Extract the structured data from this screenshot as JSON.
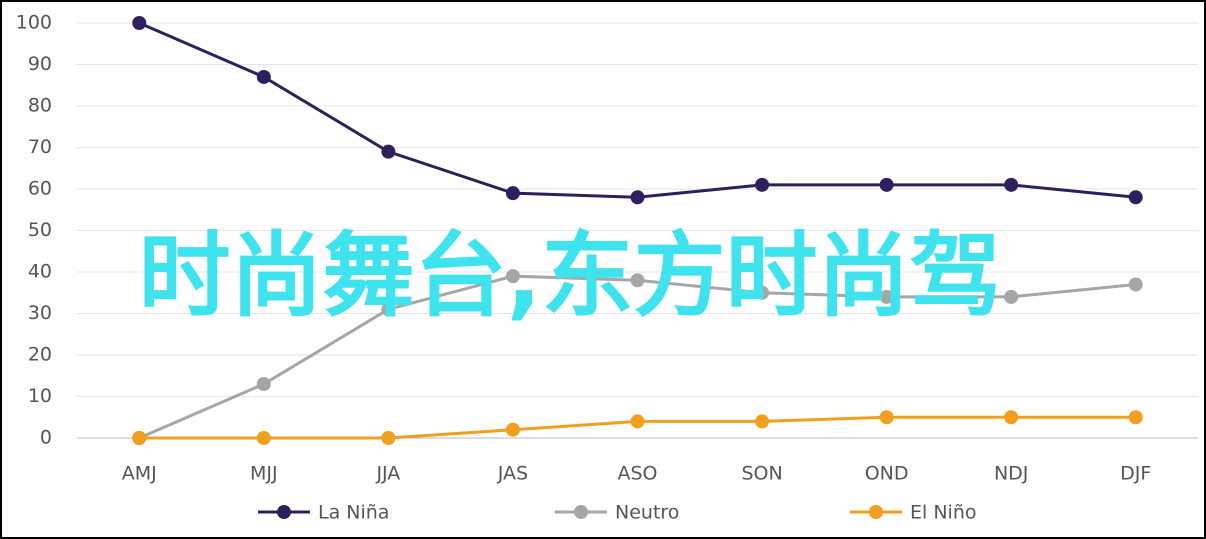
{
  "chart_data": {
    "type": "line",
    "categories": [
      "AMJ",
      "MJJ",
      "JJA",
      "JAS",
      "ASO",
      "SON",
      "OND",
      "NDJ",
      "DJF"
    ],
    "series": [
      {
        "name": "La Niña",
        "color": "#2e1f5e",
        "values": [
          100,
          87,
          69,
          59,
          58,
          61,
          61,
          61,
          58
        ]
      },
      {
        "name": "Neutro",
        "color": "#a6a6a6",
        "values": [
          0,
          13,
          31,
          39,
          38,
          35,
          34,
          34,
          37
        ]
      },
      {
        "name": "El Niño",
        "color": "#f0a01e",
        "values": [
          0,
          0,
          0,
          2,
          4,
          4,
          5,
          5,
          5
        ]
      }
    ],
    "ylim": [
      0,
      100
    ],
    "yticks": [
      0,
      10,
      20,
      30,
      40,
      50,
      60,
      70,
      80,
      90,
      100
    ],
    "grid": true,
    "legend": "bottom",
    "annotation": "时尚舞台,东方时尚驾"
  }
}
